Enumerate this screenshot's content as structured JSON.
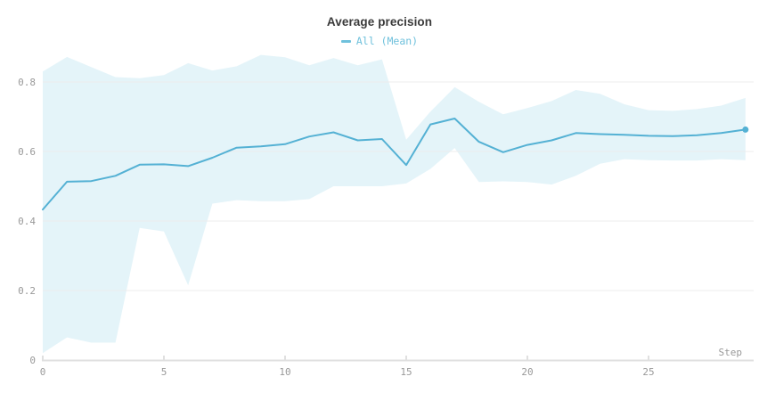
{
  "header": {
    "title": "Average precision"
  },
  "legend": {
    "items": [
      {
        "label": "All (Mean)",
        "icon": "legend-dash-icon",
        "color": "#6fc1dc"
      }
    ]
  },
  "colors": {
    "line": "#54b1d4",
    "band": "#e4f4f9",
    "legend_text": "#6fc1dc",
    "title_text": "#3a3a3a",
    "tick_text": "#999999",
    "grid": "#ececec",
    "axis": "#e0e0e0"
  },
  "axes": {
    "x": {
      "label": "Step",
      "range": [
        0,
        29
      ],
      "ticks": [
        {
          "value": 0,
          "label": "0"
        },
        {
          "value": 5,
          "label": "5"
        },
        {
          "value": 10,
          "label": "10"
        },
        {
          "value": 15,
          "label": "15"
        },
        {
          "value": 20,
          "label": "20"
        },
        {
          "value": 25,
          "label": "25"
        }
      ]
    },
    "y": {
      "range": [
        0,
        0.9
      ],
      "ticks": [
        {
          "value": 0,
          "label": "0"
        },
        {
          "value": 0.2,
          "label": "0.2"
        },
        {
          "value": 0.4,
          "label": "0.4"
        },
        {
          "value": 0.6,
          "label": "0.6"
        },
        {
          "value": 0.8,
          "label": "0.8"
        }
      ]
    }
  },
  "chart_data": {
    "type": "line",
    "title": "Average precision",
    "xlabel": "Step",
    "ylabel": "",
    "xlim": [
      0,
      29.5
    ],
    "ylim": [
      0,
      0.9
    ],
    "grid": "horizontal",
    "legend_position": "top-center",
    "series": [
      {
        "name": "All (Mean)",
        "color": "#54b1d4",
        "band_color": "#e4f4f9",
        "end_marker": true,
        "x": [
          0,
          1,
          2,
          3,
          4,
          5,
          6,
          7,
          8,
          9,
          10,
          11,
          12,
          13,
          14,
          15,
          16,
          17,
          18,
          19,
          20,
          21,
          22,
          23,
          24,
          25,
          26,
          27,
          28,
          29
        ],
        "y": [
          0.433,
          0.513,
          0.515,
          0.53,
          0.562,
          0.563,
          0.558,
          0.582,
          0.611,
          0.615,
          0.621,
          0.643,
          0.655,
          0.632,
          0.636,
          0.561,
          0.678,
          0.695,
          0.628,
          0.598,
          0.619,
          0.632,
          0.653,
          0.65,
          0.648,
          0.645,
          0.644,
          0.647,
          0.653,
          0.663
        ],
        "band_lower": [
          0.02,
          0.065,
          0.05,
          0.05,
          0.38,
          0.37,
          0.215,
          0.45,
          0.46,
          0.457,
          0.457,
          0.463,
          0.5,
          0.5,
          0.5,
          0.508,
          0.55,
          0.61,
          0.512,
          0.514,
          0.512,
          0.505,
          0.53,
          0.565,
          0.578,
          0.575,
          0.574,
          0.574,
          0.578,
          0.575
        ],
        "band_upper": [
          0.83,
          0.872,
          0.843,
          0.814,
          0.811,
          0.82,
          0.854,
          0.833,
          0.845,
          0.878,
          0.871,
          0.848,
          0.869,
          0.848,
          0.865,
          0.634,
          0.715,
          0.785,
          0.743,
          0.707,
          0.725,
          0.745,
          0.777,
          0.766,
          0.736,
          0.719,
          0.717,
          0.722,
          0.732,
          0.754
        ]
      }
    ]
  }
}
